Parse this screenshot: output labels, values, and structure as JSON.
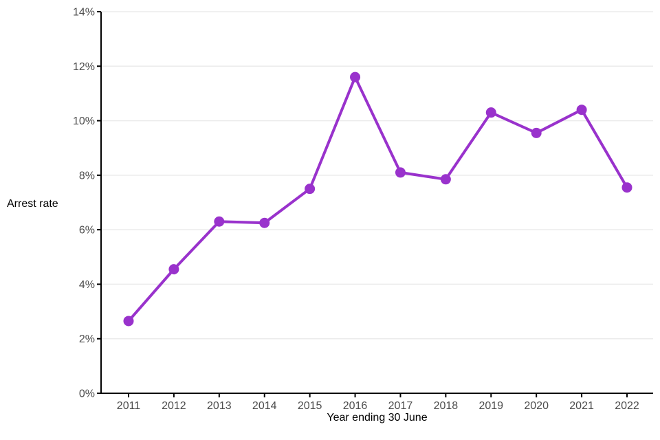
{
  "chart_data": {
    "type": "line",
    "title": "",
    "xlabel": "Year ending 30 June",
    "ylabel": "Arrest rate",
    "x": [
      "2011",
      "2012",
      "2013",
      "2014",
      "2015",
      "2016",
      "2017",
      "2018",
      "2019",
      "2020",
      "2021",
      "2022"
    ],
    "series": [
      {
        "name": "Arrest rate",
        "values": [
          2.65,
          4.55,
          6.3,
          6.25,
          7.5,
          11.6,
          8.1,
          7.85,
          10.3,
          9.55,
          10.4,
          7.55
        ]
      }
    ],
    "ylim": [
      0,
      14
    ],
    "yticks": [
      0,
      2,
      4,
      6,
      8,
      10,
      12,
      14
    ],
    "ytick_labels": [
      "0%",
      "2%",
      "4%",
      "6%",
      "8%",
      "10%",
      "12%",
      "14%"
    ],
    "grid": true,
    "legend_position": "none",
    "colors": {
      "line": "#9932CC",
      "marker": "#9932CC",
      "grid": "#EBEBEB",
      "axis": "#000000",
      "tick_label": "#4D4D4D",
      "axis_title": "#000000",
      "background": "#FFFFFF"
    }
  }
}
